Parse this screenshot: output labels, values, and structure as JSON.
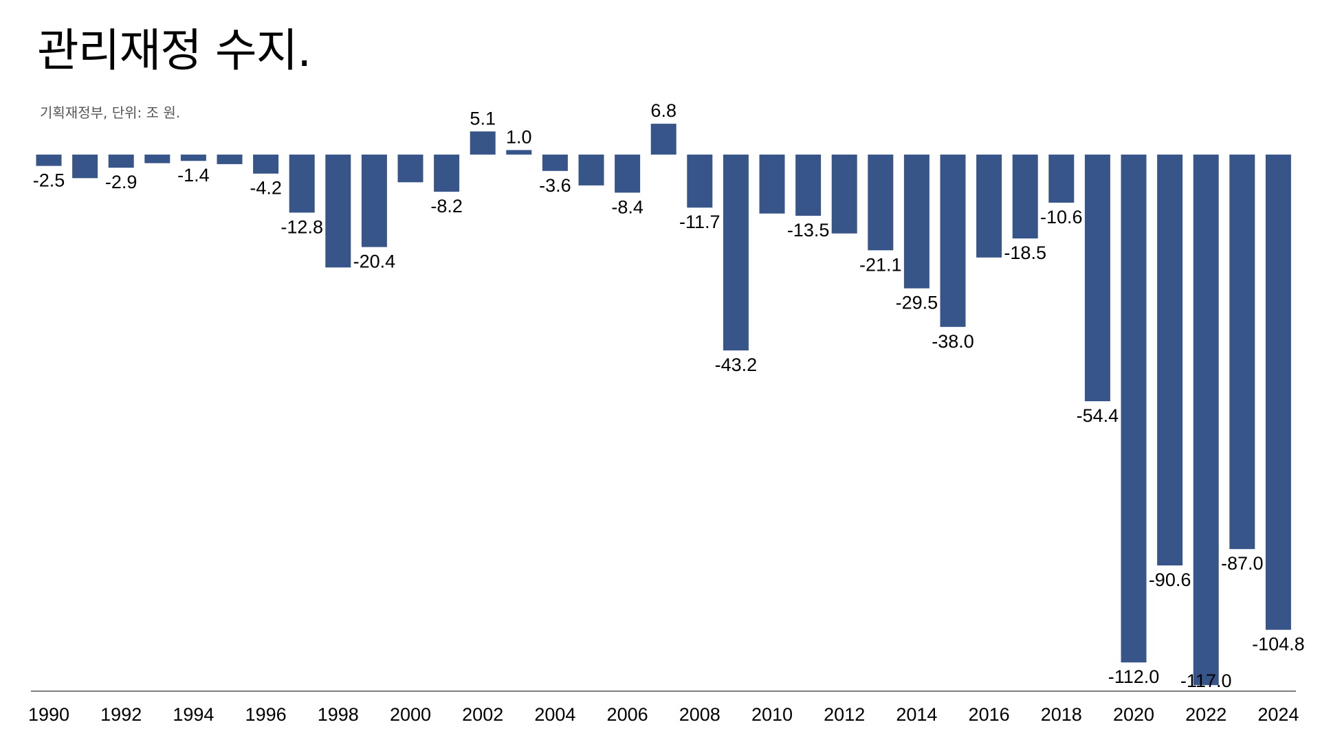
{
  "header": {
    "title": "관리재정 수지.",
    "subtitle": "기획재정부, 단위: 조 원."
  },
  "chart_data": {
    "type": "bar",
    "title": "관리재정 수지.",
    "subtitle": "기획재정부, 단위: 조 원.",
    "xlabel": "",
    "ylabel": "",
    "categories": [
      "1990",
      "1991",
      "1992",
      "1993",
      "1994",
      "1995",
      "1996",
      "1997",
      "1998",
      "1999",
      "2000",
      "2001",
      "2002",
      "2003",
      "2004",
      "2005",
      "2006",
      "2007",
      "2008",
      "2009",
      "2010",
      "2011",
      "2012",
      "2013",
      "2014",
      "2015",
      "2016",
      "2017",
      "2018",
      "2019",
      "2020",
      "2021",
      "2022",
      "2023",
      "2024"
    ],
    "values": [
      -2.5,
      -5.2,
      -2.9,
      -1.9,
      -1.4,
      -2.1,
      -4.2,
      -12.8,
      -24.9,
      -20.4,
      -6.1,
      -8.2,
      5.1,
      1.0,
      -3.6,
      -6.8,
      -8.4,
      6.8,
      -11.7,
      -43.2,
      -13.0,
      -13.5,
      -17.4,
      -21.1,
      -29.5,
      -38.0,
      -22.7,
      -18.5,
      -10.6,
      -54.4,
      -112.0,
      -90.6,
      -117.0,
      -87.0,
      -104.8
    ],
    "data_labels": [
      "-2.5",
      "",
      "-2.9",
      "",
      "-1.4",
      "",
      "-4.2",
      "-12.8",
      "",
      "-20.4",
      "",
      "-8.2",
      "5.1",
      "1.0",
      "-3.6",
      "",
      "-8.4",
      "6.8",
      "-11.7",
      "-43.2",
      "",
      "-13.5",
      "",
      "-21.1",
      "-29.5",
      "-38.0",
      "",
      "-18.5",
      "-10.6",
      "-54.4",
      "-112.0",
      "-90.6",
      "-117.0",
      "-87.0",
      "-104.8"
    ],
    "tick_labels": [
      "1990",
      "1992",
      "1994",
      "1996",
      "1998",
      "2000",
      "2002",
      "2004",
      "2006",
      "2008",
      "2010",
      "2012",
      "2014",
      "2016",
      "2018",
      "2020",
      "2022",
      "2024"
    ],
    "ylim": [
      -120,
      7
    ],
    "bar_color": "#38558a",
    "grid": false,
    "legend": "none"
  }
}
